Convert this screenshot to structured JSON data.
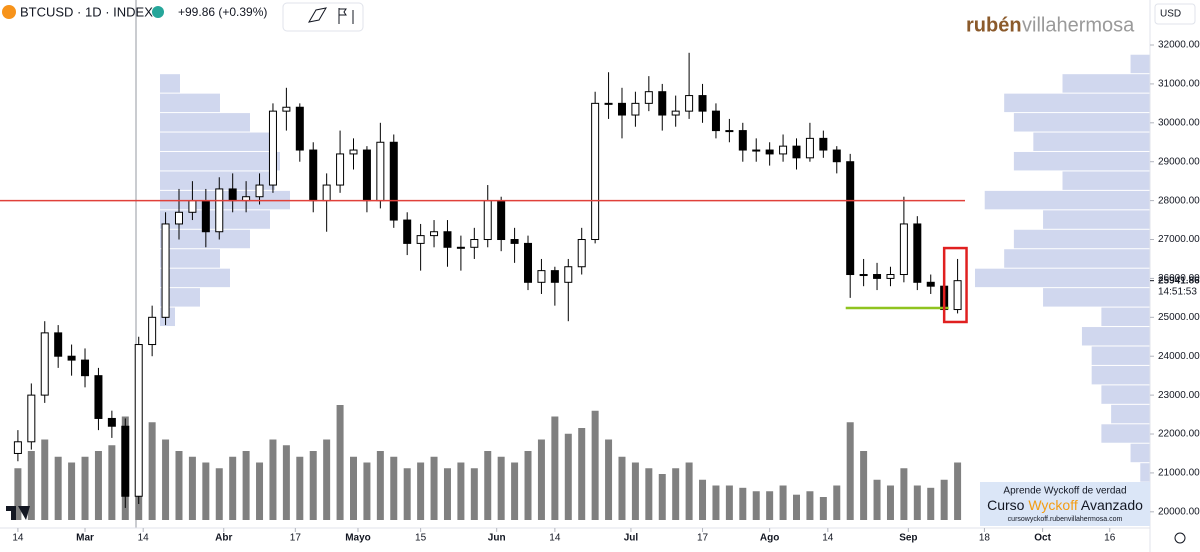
{
  "header": {
    "title": "BTCUSD · 1D · INDEX",
    "change": "+99.86 (+0.39%)",
    "currency": "USD"
  },
  "logo": [
    "rubén",
    "villahermosa"
  ],
  "promo": {
    "line1": "Aprende Wyckoff de verdad",
    "line2": [
      "Curso",
      "Wyckoff",
      "Avanzado"
    ],
    "url": "cursowyckoff.rubenvillahermosa.com"
  },
  "chart_data": {
    "type": "candlestick",
    "up_color": "#ffffff",
    "down_color": "#000000",
    "volume_color": "#808080",
    "last_price": 25941.86,
    "countdown": "14:51:53",
    "xlim": [
      -4,
      253
    ],
    "ylim": [
      19584,
      33157
    ],
    "xticks": [
      {
        "value": 0,
        "label": "14"
      },
      {
        "value": 15,
        "label": "Mar"
      },
      {
        "value": 28,
        "label": "14"
      },
      {
        "value": 46,
        "label": "Abr"
      },
      {
        "value": 62,
        "label": "17"
      },
      {
        "value": 76,
        "label": "Mayo"
      },
      {
        "value": 90,
        "label": "15"
      },
      {
        "value": 107,
        "label": "Jun"
      },
      {
        "value": 120,
        "label": "14"
      },
      {
        "value": 137,
        "label": "Jul"
      },
      {
        "value": 153,
        "label": "17"
      },
      {
        "value": 168,
        "label": "Ago"
      },
      {
        "value": 181,
        "label": "14"
      },
      {
        "value": 199,
        "label": "Sep"
      },
      {
        "value": 216,
        "label": "18"
      },
      {
        "value": 229,
        "label": "Oct"
      },
      {
        "value": 244,
        "label": "16"
      }
    ],
    "yticks": [
      {
        "value": 20000,
        "label": "20000.00"
      },
      {
        "value": 21000,
        "label": "21000.00"
      },
      {
        "value": 22000,
        "label": "22000.00"
      },
      {
        "value": 23000,
        "label": "23000.00"
      },
      {
        "value": 24000,
        "label": "24000.00"
      },
      {
        "value": 25000,
        "label": "25000.00"
      },
      {
        "value": 26000,
        "label": "26000.00"
      },
      {
        "value": 27000,
        "label": "27000.00"
      },
      {
        "value": 28000,
        "label": "28000.00"
      },
      {
        "value": 29000,
        "label": "29000.00"
      },
      {
        "value": 30000,
        "label": "30000.00"
      },
      {
        "value": 31000,
        "label": "31000.00"
      },
      {
        "value": 32000,
        "label": "32000.00"
      }
    ],
    "candles": {
      "days": [
        0,
        3,
        6,
        9,
        12,
        15,
        18,
        21,
        24,
        27,
        30,
        33,
        36,
        39,
        42,
        45,
        48,
        51,
        54,
        57,
        60,
        63,
        66,
        69,
        72,
        75,
        78,
        81,
        84,
        87,
        90,
        93,
        96,
        99,
        102,
        105,
        108,
        111,
        114,
        117,
        120,
        123,
        126,
        129,
        132,
        135,
        138,
        141,
        144,
        147,
        150,
        153,
        156,
        159,
        162,
        165,
        168,
        171,
        174,
        177,
        180,
        183,
        186,
        189,
        192,
        195,
        198,
        201,
        204,
        207,
        210
      ],
      "open": [
        21500,
        21800,
        23000,
        24600,
        24000,
        23900,
        23500,
        22400,
        22200,
        20400,
        24300,
        25000,
        27400,
        27700,
        28000,
        27200,
        28300,
        28000,
        28100,
        28400,
        30300,
        30400,
        29300,
        28000,
        28400,
        29200,
        29300,
        28000,
        29500,
        27500,
        26900,
        27100,
        27200,
        26800,
        26800,
        27000,
        28000,
        27000,
        26900,
        25900,
        26200,
        25900,
        26300,
        27000,
        30500,
        30500,
        30200,
        30500,
        30800,
        30200,
        30300,
        30700,
        30300,
        29800,
        29800,
        29300,
        29300,
        29200,
        29400,
        29100,
        29600,
        29300,
        29000,
        26100,
        26100,
        26000,
        26100,
        27400,
        25900,
        25800,
        25200
      ],
      "high": [
        22100,
        23300,
        24900,
        24800,
        24300,
        24200,
        23700,
        22600,
        22400,
        24500,
        25300,
        27700,
        28300,
        28500,
        28300,
        28600,
        28700,
        28500,
        28700,
        30500,
        30900,
        30500,
        29500,
        28700,
        29800,
        29600,
        29400,
        30000,
        29700,
        27700,
        27400,
        27500,
        27500,
        27100,
        27300,
        28400,
        28100,
        27300,
        27100,
        26500,
        26300,
        26500,
        27300,
        30800,
        31300,
        30900,
        30800,
        31200,
        31000,
        30700,
        31800,
        31000,
        30500,
        30100,
        30000,
        29600,
        29500,
        29700,
        29600,
        30000,
        29800,
        29400,
        29200,
        26500,
        26400,
        26300,
        28100,
        27600,
        26100,
        26400,
        26500
      ],
      "low": [
        21300,
        21600,
        22800,
        23700,
        23500,
        23200,
        22100,
        21900,
        20100,
        20200,
        24000,
        24800,
        27000,
        27500,
        26800,
        27000,
        27700,
        27700,
        27900,
        28200,
        29800,
        29000,
        27700,
        27200,
        28200,
        28800,
        27700,
        27800,
        27300,
        26600,
        26200,
        26800,
        26300,
        26200,
        26500,
        26800,
        26700,
        26400,
        25700,
        25600,
        25300,
        24900,
        26100,
        26900,
        30100,
        29600,
        29900,
        30300,
        29800,
        29900,
        30100,
        30000,
        29600,
        29500,
        29000,
        29000,
        28900,
        29000,
        28800,
        29000,
        29100,
        28700,
        25500,
        25800,
        25700,
        25800,
        25900,
        25700,
        25600,
        25100,
        25100
      ],
      "close": [
        21800,
        23000,
        24600,
        24000,
        23900,
        23500,
        22400,
        22200,
        20400,
        24300,
        25000,
        27400,
        27700,
        28000,
        27200,
        28300,
        28000,
        28100,
        28400,
        30300,
        30400,
        29300,
        28000,
        28400,
        29200,
        29300,
        28000,
        29500,
        27500,
        26900,
        27100,
        27200,
        26800,
        26800,
        27000,
        28000,
        27000,
        26900,
        25900,
        26200,
        25900,
        26300,
        27000,
        30500,
        30500,
        30200,
        30500,
        30800,
        30200,
        30300,
        30700,
        30300,
        29800,
        29800,
        29300,
        29300,
        29200,
        29400,
        29100,
        29600,
        29300,
        29000,
        26100,
        26100,
        26000,
        26100,
        27400,
        25900,
        25800,
        25200,
        25941.86
      ],
      "volume": [
        45,
        60,
        70,
        55,
        50,
        55,
        60,
        65,
        90,
        95,
        85,
        70,
        60,
        55,
        50,
        45,
        55,
        60,
        50,
        70,
        65,
        55,
        60,
        70,
        100,
        55,
        50,
        60,
        55,
        45,
        50,
        55,
        45,
        50,
        45,
        60,
        55,
        50,
        60,
        70,
        90,
        75,
        80,
        95,
        70,
        55,
        50,
        45,
        40,
        45,
        50,
        35,
        30,
        30,
        28,
        25,
        25,
        30,
        22,
        25,
        20,
        30,
        85,
        60,
        35,
        30,
        45,
        30,
        28,
        35,
        50
      ]
    },
    "profile_left": {
      "color": "#aab6e0",
      "prices": [
        25000,
        25500,
        26000,
        26500,
        27000,
        27500,
        28000,
        28500,
        29000,
        29500,
        30000,
        30500,
        31000
      ],
      "values": [
        15,
        40,
        70,
        60,
        90,
        110,
        130,
        115,
        120,
        110,
        90,
        60,
        20
      ]
    },
    "profile_right": {
      "color": "#aab6e0",
      "prices": [
        21000,
        21500,
        22000,
        22500,
        23000,
        23500,
        24000,
        24500,
        25000,
        25500,
        26000,
        26500,
        27000,
        27500,
        28000,
        28500,
        29000,
        29500,
        30000,
        30500,
        31000,
        31500
      ],
      "values": [
        10,
        20,
        50,
        40,
        50,
        60,
        60,
        70,
        50,
        110,
        180,
        150,
        140,
        110,
        170,
        90,
        140,
        120,
        140,
        150,
        90,
        20
      ]
    },
    "level_line": {
      "value": 28000,
      "color": "#e0403a"
    },
    "support_line": {
      "value": 25240,
      "from": 185,
      "to": 208,
      "color": "#8fc31f"
    },
    "highlight_box": {
      "top": 26780,
      "bottom": 24880,
      "from": 207,
      "to": 212,
      "color": "#e02020"
    }
  }
}
